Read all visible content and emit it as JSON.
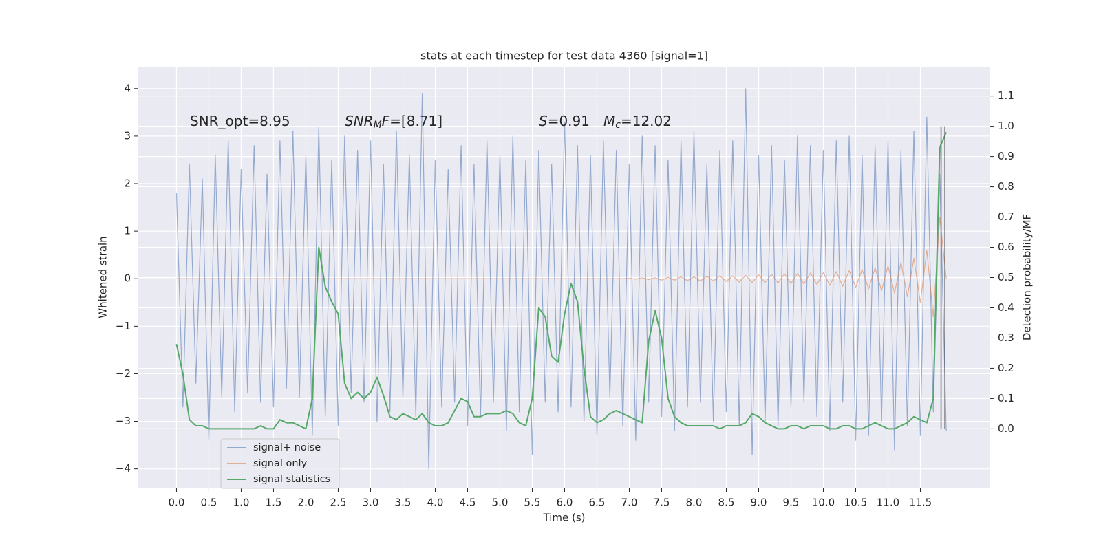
{
  "chart_data": {
    "type": "line",
    "title": "stats at each timestep for test data 4360 [signal=1]",
    "xlabel": "Time (s)",
    "ylabel": "Whitened strain",
    "y2label": "Detection probability/MF",
    "grid": true,
    "legend": "lower left",
    "background": "#eaeaf2",
    "annotations": [
      {
        "text": "SNR_opt=8.95"
      },
      {
        "main": "SNR",
        "sub": "M",
        "main2": "F",
        "rest": "=[8.71]"
      },
      {
        "main": "S",
        "rest": "=0.91"
      },
      {
        "main": "M",
        "sub": "c",
        "rest": "=12.02"
      }
    ],
    "vlines": {
      "x": [
        11.82,
        11.88
      ],
      "y2": [
        0,
        1.0
      ],
      "color": "#555555"
    },
    "xlim": [
      -0.59,
      12.58
    ],
    "ylim": [
      -4.41,
      4.46
    ],
    "y2lim": [
      -0.197,
      1.197
    ],
    "xticks": [
      {
        "value": 0,
        "label": "0.0"
      },
      0.5,
      {
        "value": 1,
        "label": "1.0"
      },
      1.5,
      {
        "value": 2,
        "label": "2.0"
      },
      2.5,
      {
        "value": 3,
        "label": "3.0"
      },
      3.5,
      {
        "value": 4,
        "label": "4.0"
      },
      4.5,
      {
        "value": 5,
        "label": "5.0"
      },
      5.5,
      {
        "value": 6,
        "label": "6.0"
      },
      6.5,
      {
        "value": 7,
        "label": "7.0"
      },
      7.5,
      {
        "value": 8,
        "label": "8.0"
      },
      8.5,
      {
        "value": 9,
        "label": "9.0"
      },
      9.5,
      {
        "value": 10,
        "label": "10.0"
      },
      10.5,
      {
        "value": 11,
        "label": "11.0"
      },
      11.5
    ],
    "yticks": [
      {
        "value": -4,
        "label": "−4"
      },
      {
        "value": -3,
        "label": "−3"
      },
      {
        "value": -2,
        "label": "−2"
      },
      {
        "value": -1,
        "label": "−1"
      },
      0,
      1,
      2,
      3,
      4
    ],
    "y2ticks": [
      {
        "value": 0,
        "label": "0.0"
      },
      0.1,
      0.2,
      0.3,
      0.4,
      0.5,
      0.6,
      0.7,
      0.8,
      0.9,
      {
        "value": 1,
        "label": "1.0"
      },
      1.1
    ],
    "x": [
      0,
      0.1,
      0.2,
      0.3,
      0.4,
      0.5,
      0.6,
      0.7,
      0.8,
      0.9,
      1,
      1.1,
      1.2,
      1.3,
      1.4,
      1.5,
      1.6,
      1.7,
      1.8,
      1.9,
      2,
      2.1,
      2.2,
      2.3,
      2.4,
      2.5,
      2.6,
      2.7,
      2.8,
      2.9,
      3,
      3.1,
      3.2,
      3.3,
      3.4,
      3.5,
      3.6,
      3.7,
      3.8,
      3.9,
      4,
      4.1,
      4.2,
      4.3,
      4.4,
      4.5,
      4.6,
      4.7,
      4.8,
      4.9,
      5,
      5.1,
      5.2,
      5.3,
      5.4,
      5.5,
      5.6,
      5.7,
      5.8,
      5.9,
      6,
      6.1,
      6.2,
      6.3,
      6.4,
      6.5,
      6.6,
      6.7,
      6.8,
      6.9,
      7,
      7.1,
      7.2,
      7.3,
      7.4,
      7.5,
      7.6,
      7.7,
      7.8,
      7.9,
      8,
      8.1,
      8.2,
      8.3,
      8.4,
      8.5,
      8.6,
      8.7,
      8.8,
      8.9,
      9,
      9.1,
      9.2,
      9.3,
      9.4,
      9.5,
      9.6,
      9.7,
      9.8,
      9.9,
      10,
      10.1,
      10.2,
      10.3,
      10.4,
      10.5,
      10.6,
      10.7,
      10.8,
      10.9,
      11,
      11.1,
      11.2,
      11.3,
      11.4,
      11.5,
      11.6,
      11.7,
      11.8,
      11.9
    ],
    "series": [
      {
        "name": "signal+ noise",
        "color": "#4c72b0",
        "axis": "y",
        "values": [
          1.8,
          -2.7,
          2.4,
          -2.2,
          2.1,
          -3.4,
          2.6,
          -2.5,
          2.9,
          -2.8,
          2.3,
          -2.4,
          2.8,
          -2.6,
          2.2,
          -2.7,
          2.9,
          -2.3,
          3.1,
          -2.5,
          2.6,
          -3.3,
          3.2,
          -2.9,
          2.5,
          -3.1,
          3.0,
          -2.4,
          2.7,
          -2.6,
          2.9,
          -3.0,
          2.4,
          -2.8,
          3.1,
          -2.5,
          2.6,
          -2.9,
          3.9,
          -4.0,
          2.5,
          -2.7,
          2.3,
          -2.6,
          2.8,
          -3.1,
          2.4,
          -2.9,
          2.9,
          -2.6,
          2.6,
          -3.2,
          3.0,
          -2.8,
          2.5,
          -3.7,
          2.7,
          -2.6,
          2.4,
          -2.8,
          3.3,
          -2.7,
          2.8,
          -3.0,
          2.6,
          -3.3,
          2.9,
          -2.5,
          2.7,
          -3.1,
          2.4,
          -3.4,
          3.0,
          -2.6,
          2.8,
          -2.9,
          2.5,
          -3.2,
          2.9,
          -2.7,
          3.1,
          -2.6,
          2.4,
          -3.0,
          2.7,
          -2.8,
          2.9,
          -3.1,
          4.0,
          -3.7,
          2.6,
          -3.0,
          2.8,
          -3.1,
          2.5,
          -2.7,
          3.0,
          -2.6,
          2.8,
          -2.9,
          2.7,
          -3.2,
          2.9,
          -2.6,
          3.0,
          -3.4,
          2.6,
          -3.3,
          2.8,
          -3.0,
          2.9,
          -3.6,
          2.7,
          -3.1,
          3.1,
          -3.3,
          3.4,
          -2.8,
          2.2,
          -3.2
        ]
      },
      {
        "name": "signal only",
        "color": "#dd8452",
        "axis": "y",
        "values": [
          0,
          0,
          0,
          0,
          0,
          0,
          0,
          0,
          0,
          0,
          0,
          0,
          0,
          0,
          0,
          0,
          0,
          0,
          0,
          0,
          0,
          0,
          0,
          0,
          0,
          0,
          0,
          0,
          0,
          0,
          0,
          0,
          0,
          0,
          0,
          0,
          0,
          0,
          0,
          0,
          0,
          0,
          0,
          0,
          0,
          0,
          0,
          0,
          0,
          0,
          0,
          0,
          0,
          0,
          0,
          0,
          0,
          0,
          0,
          0,
          0,
          0,
          0,
          0,
          0,
          0,
          0,
          0,
          0,
          0,
          0.01,
          -0.01,
          0.02,
          -0.02,
          0.02,
          -0.03,
          0.03,
          -0.03,
          0.04,
          -0.04,
          0.04,
          -0.05,
          0.05,
          -0.05,
          0.06,
          -0.06,
          0.06,
          -0.07,
          0.07,
          -0.08,
          0.08,
          -0.08,
          0.09,
          -0.09,
          0.1,
          -0.1,
          0.11,
          -0.11,
          0.12,
          -0.12,
          0.13,
          -0.14,
          0.15,
          -0.16,
          0.17,
          -0.18,
          0.19,
          -0.21,
          0.23,
          -0.25,
          0.27,
          -0.3,
          0.34,
          -0.38,
          0.43,
          -0.5,
          0.6,
          -0.8,
          1.3,
          0
        ]
      },
      {
        "name": "signal statistics",
        "color": "#55a868",
        "axis": "y2",
        "values": [
          0.28,
          0.18,
          0.03,
          0.01,
          0.01,
          0.0,
          0.0,
          0.0,
          0.0,
          0.0,
          0.0,
          0.0,
          0.0,
          0.01,
          0.0,
          0.0,
          0.03,
          0.02,
          0.02,
          0.01,
          0.0,
          0.1,
          0.6,
          0.47,
          0.42,
          0.38,
          0.15,
          0.1,
          0.12,
          0.1,
          0.12,
          0.17,
          0.11,
          0.04,
          0.03,
          0.05,
          0.04,
          0.03,
          0.05,
          0.02,
          0.01,
          0.01,
          0.02,
          0.06,
          0.1,
          0.09,
          0.04,
          0.04,
          0.05,
          0.05,
          0.05,
          0.06,
          0.05,
          0.02,
          0.01,
          0.1,
          0.4,
          0.37,
          0.24,
          0.22,
          0.38,
          0.48,
          0.42,
          0.2,
          0.04,
          0.02,
          0.03,
          0.05,
          0.06,
          0.05,
          0.04,
          0.03,
          0.02,
          0.29,
          0.39,
          0.3,
          0.1,
          0.04,
          0.02,
          0.01,
          0.01,
          0.01,
          0.01,
          0.01,
          0.0,
          0.01,
          0.01,
          0.01,
          0.02,
          0.05,
          0.04,
          0.02,
          0.01,
          0.0,
          0.0,
          0.01,
          0.01,
          0.0,
          0.01,
          0.01,
          0.01,
          0.0,
          0.0,
          0.01,
          0.01,
          0.0,
          0.0,
          0.01,
          0.02,
          0.01,
          0.0,
          0.0,
          0.01,
          0.02,
          0.04,
          0.03,
          0.02,
          0.1,
          0.93,
          0.98
        ]
      }
    ]
  }
}
